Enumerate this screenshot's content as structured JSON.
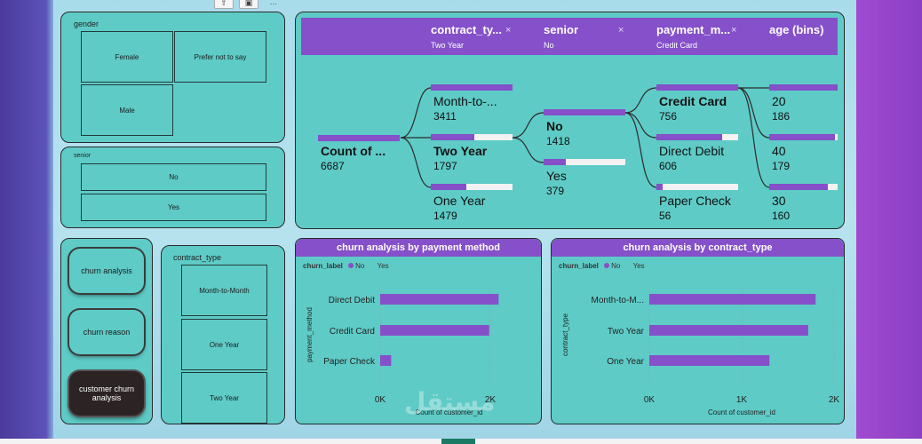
{
  "toolbar": {
    "filter_icon": "filter-icon",
    "focus_icon": "focus-icon",
    "more_label": "…"
  },
  "gender_slicer": {
    "title": "gender",
    "options": [
      "Female",
      "Prefer not to say",
      "Male"
    ]
  },
  "senior_slicer": {
    "title": "senior",
    "options": [
      "No",
      "Yes"
    ]
  },
  "nav": {
    "items": [
      "churn analysis",
      "churn reason",
      "customer churn analysis"
    ],
    "active": "customer churn analysis"
  },
  "contract_slicer": {
    "title": "contract_type",
    "options": [
      "Month-to-Month",
      "One Year",
      "Two Year"
    ]
  },
  "tree": {
    "headers": [
      {
        "title": "contract_ty...",
        "value": "Two Year",
        "close": "×"
      },
      {
        "title": "senior",
        "value": "No",
        "close": "×"
      },
      {
        "title": "payment_m...",
        "value": "Credit Card",
        "close": "×"
      },
      {
        "title": "age (bins)",
        "value": "",
        "close": ""
      }
    ],
    "root": {
      "label": "Count of ...",
      "value": "6687",
      "fill": 1.0
    },
    "level1": [
      {
        "label": "Month-to-...",
        "value": "3411",
        "fill": 1.0
      },
      {
        "label": "Two Year",
        "value": "1797",
        "fill": 0.53
      },
      {
        "label": "One Year",
        "value": "1479",
        "fill": 0.43
      }
    ],
    "level2": [
      {
        "label": "No",
        "value": "1418",
        "fill": 1.0
      },
      {
        "label": "Yes",
        "value": "379",
        "fill": 0.27
      }
    ],
    "level3": [
      {
        "label": "Credit Card",
        "value": "756",
        "fill": 1.0
      },
      {
        "label": "Direct Debit",
        "value": "606",
        "fill": 0.8
      },
      {
        "label": "Paper Check",
        "value": "56",
        "fill": 0.08
      }
    ],
    "level4": [
      {
        "label": "20",
        "value": "186",
        "fill": 1.0
      },
      {
        "label": "40",
        "value": "179",
        "fill": 0.96
      },
      {
        "label": "30",
        "value": "160",
        "fill": 0.86
      }
    ]
  },
  "colors": {
    "accent": "#8550c9",
    "panel": "#5ecbc6",
    "yes_legend": "#5ecbc6"
  },
  "chart_data": [
    {
      "type": "bar",
      "title": "churn analysis by payment method",
      "legend_title": "churn_label",
      "legend": [
        "No",
        "Yes"
      ],
      "xlabel": "Count of customer_id",
      "ylabel": "payment_method",
      "categories": [
        "Direct Debit",
        "Credit Card",
        "Paper Check"
      ],
      "series": [
        {
          "name": "No",
          "values": [
            2150,
            1980,
            200
          ]
        }
      ],
      "xlim": [
        0,
        2500
      ],
      "ticks": [
        "0K",
        "2K"
      ],
      "tick_values": [
        0,
        2000
      ]
    },
    {
      "type": "bar",
      "title": "churn analysis by contract_type",
      "legend_title": "churn_label",
      "legend": [
        "No",
        "Yes"
      ],
      "xlabel": "Count of customer_id",
      "ylabel": "contract_type",
      "categories": [
        "Month-to-M...",
        "Two Year",
        "One Year"
      ],
      "series": [
        {
          "name": "No",
          "values": [
            1800,
            1720,
            1300
          ]
        }
      ],
      "xlim": [
        0,
        2000
      ],
      "ticks": [
        "0K",
        "1K",
        "2K"
      ],
      "tick_values": [
        0,
        1000,
        2000
      ]
    }
  ],
  "watermark": "مستقل"
}
